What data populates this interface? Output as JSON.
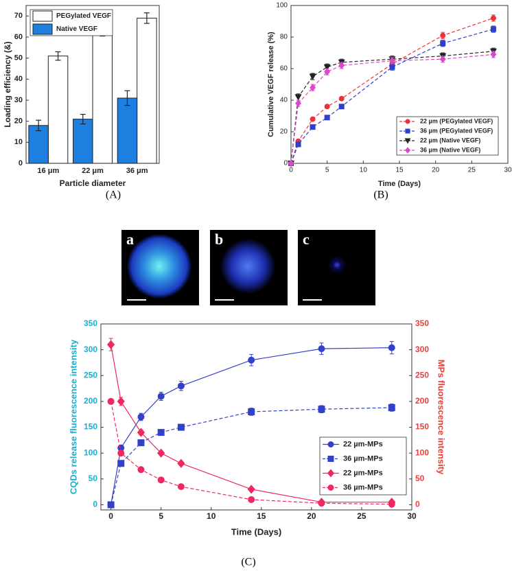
{
  "chart_data": [
    {
      "type": "bar",
      "xlabel": "Particle diameter",
      "ylabel": "Loading efficiency (&)",
      "categories": [
        "16 μm",
        "22 μm",
        "36 μm"
      ],
      "series": [
        {
          "name": "PEGylated VEGF",
          "color": "#ffffff",
          "values": [
            51,
            63,
            69
          ],
          "errors": [
            2,
            2.5,
            2.5
          ]
        },
        {
          "name": "Native VEGF",
          "color": "#1e7fe0",
          "values": [
            18,
            21,
            31
          ],
          "errors": [
            2.5,
            2.3,
            3.5
          ]
        }
      ],
      "ylim": [
        0,
        75
      ],
      "yticks": [
        0,
        10,
        20,
        30,
        40,
        50,
        60,
        70
      ],
      "legend": "upper left"
    },
    {
      "type": "line",
      "xlabel": "Time (Days)",
      "ylabel": "Cumulative VEGF release (%)",
      "x": [
        0,
        1,
        3,
        5,
        7,
        14,
        21,
        28
      ],
      "series": [
        {
          "name": "22 µm (PEGylated VEGF)",
          "color": "#e8333a",
          "marker": "circle",
          "dashed": true,
          "values": [
            0,
            14,
            28,
            36,
            41,
            63,
            81,
            92
          ],
          "errors": [
            1,
            1,
            1,
            1,
            1,
            2,
            2,
            2
          ]
        },
        {
          "name": "36 µm (PEGylated VEGF)",
          "color": "#2e3fc8",
          "marker": "square",
          "dashed": true,
          "values": [
            0,
            12,
            23,
            29,
            36,
            61,
            76,
            85
          ],
          "errors": [
            1,
            1,
            1,
            1,
            1,
            2,
            2,
            2
          ]
        },
        {
          "name": "22 µm (Native VEGF)",
          "color": "#222222",
          "marker": "triangle-down",
          "dashed": true,
          "values": [
            0,
            42,
            55,
            61,
            64,
            66,
            68,
            71
          ],
          "errors": [
            1,
            2,
            2,
            2,
            2,
            2,
            2,
            2
          ]
        },
        {
          "name": "36 µm (Native VEGF)",
          "color": "#d84bc8",
          "marker": "diamond",
          "dashed": true,
          "values": [
            0,
            38,
            48,
            58,
            62,
            65,
            66,
            69
          ],
          "errors": [
            1,
            2,
            2,
            2,
            2,
            2,
            2,
            2
          ]
        }
      ],
      "xlim": [
        0,
        30
      ],
      "xticks": [
        0,
        5,
        10,
        15,
        20,
        25,
        30
      ],
      "ylim": [
        0,
        100
      ],
      "yticks": [
        0,
        20,
        40,
        60,
        80,
        100
      ],
      "legend": "lower right"
    },
    {
      "type": "line",
      "xlabel": "Time (Days)",
      "ylabel": "CQDs release fluorescence intensity",
      "y2label": "MPs fluorescence intensity",
      "ylabel_color": "#1aaed0",
      "y2label_color": "#e8403a",
      "x": [
        0,
        1,
        3,
        5,
        7,
        14,
        21,
        28
      ],
      "series": [
        {
          "name": "22 µm-MPs",
          "color": "#3340c8",
          "marker": "circle",
          "dashed": false,
          "values": [
            0,
            110,
            170,
            210,
            230,
            280,
            302,
            304
          ],
          "errors": [
            5,
            5,
            7,
            8,
            9,
            11,
            11,
            12
          ]
        },
        {
          "name": "36 µm-MPs",
          "color": "#3340c8",
          "marker": "square",
          "dashed": true,
          "values": [
            0,
            80,
            120,
            140,
            150,
            180,
            185,
            188
          ],
          "errors": [
            3,
            4,
            5,
            5,
            6,
            7,
            7,
            7
          ]
        },
        {
          "name": "22 µm-MPs",
          "color": "#ee2860",
          "marker": "diamond",
          "dashed": false,
          "axis": "y2",
          "values": [
            310,
            200,
            140,
            100,
            80,
            30,
            5,
            5
          ],
          "errors": [
            12,
            8,
            5,
            4,
            4,
            3,
            2,
            2
          ]
        },
        {
          "name": "36 µm-MPs",
          "color": "#ee2860",
          "marker": "circle",
          "dashed": true,
          "axis": "y2",
          "values": [
            200,
            100,
            68,
            48,
            35,
            10,
            3,
            1
          ],
          "errors": [
            5,
            4,
            3,
            2,
            2,
            2,
            1,
            1
          ]
        }
      ],
      "xlim": [
        -1,
        30
      ],
      "xticks": [
        0,
        5,
        10,
        15,
        20,
        25,
        30
      ],
      "ylim": [
        -10,
        350
      ],
      "yticks": [
        0,
        50,
        100,
        150,
        200,
        250,
        300,
        350
      ],
      "y2lim": [
        -10,
        350
      ],
      "y2ticks": [
        0,
        50,
        100,
        150,
        200,
        250,
        300,
        350
      ],
      "legend": "lower right"
    }
  ],
  "panel_labels": [
    "(A)",
    "(B)",
    "(C)"
  ],
  "image_labels": [
    "a",
    "b",
    "c"
  ]
}
